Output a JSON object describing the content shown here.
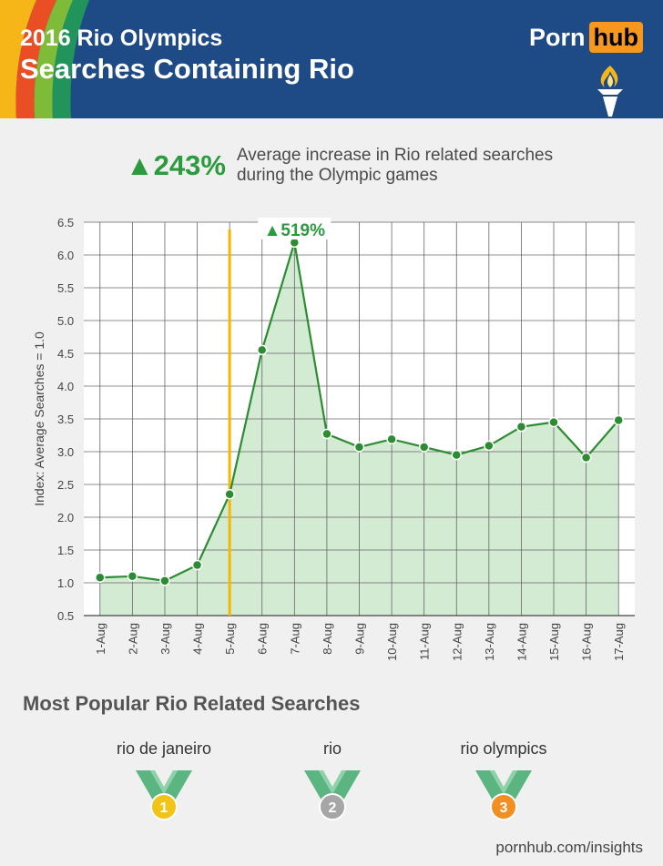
{
  "header": {
    "title_line1": "2016 Rio Olympics",
    "title_line2": "Searches Containing Rio",
    "logo_part1": "Porn",
    "logo_part2": "hub"
  },
  "highlight": {
    "value": "▲243%",
    "description": "Average increase in Rio related searches during the Olympic games"
  },
  "chart_data": {
    "type": "line",
    "ylabel": "Index: Average Searches = 1.0",
    "xlabel": "",
    "ylim": [
      0.5,
      6.5
    ],
    "yticks": [
      "0.5",
      "1.0",
      "1.5",
      "2.0",
      "2.5",
      "3.0",
      "3.5",
      "4.0",
      "4.5",
      "5.0",
      "5.5",
      "6.0",
      "6.5"
    ],
    "categories": [
      "1-Aug",
      "2-Aug",
      "3-Aug",
      "4-Aug",
      "5-Aug",
      "6-Aug",
      "7-Aug",
      "8-Aug",
      "9-Aug",
      "10-Aug",
      "11-Aug",
      "12-Aug",
      "13-Aug",
      "14-Aug",
      "15-Aug",
      "16-Aug",
      "17-Aug"
    ],
    "values": [
      1.08,
      1.1,
      1.03,
      1.27,
      2.35,
      4.55,
      6.19,
      3.27,
      3.07,
      3.19,
      3.07,
      2.95,
      3.09,
      3.38,
      3.45,
      2.91,
      3.48
    ],
    "marker": {
      "category": "5-Aug",
      "color": "#f5b800"
    },
    "peak_annotation": {
      "category": "7-Aug",
      "text": "▲519%"
    },
    "grid": true,
    "colors": {
      "line": "#2c8c32",
      "fill": "#d3ead3",
      "grid": "#666666"
    }
  },
  "popular": {
    "title": "Most Popular Rio Related Searches",
    "items": [
      {
        "label": "rio de janeiro",
        "rank": "1",
        "color": "#f2c418"
      },
      {
        "label": "rio",
        "rank": "2",
        "color": "#a6a6a6"
      },
      {
        "label": "rio olympics",
        "rank": "3",
        "color": "#f28f22"
      }
    ]
  },
  "footer": {
    "text": "pornhub.com/insights"
  }
}
